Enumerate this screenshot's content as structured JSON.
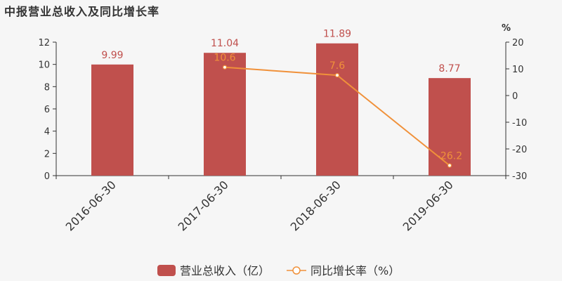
{
  "title": "中报营业总收入及同比增长率",
  "colors": {
    "bar": "#c0504d",
    "line": "#f0913a",
    "axis": "#333333",
    "background": "#f6f6f6"
  },
  "chart_data": {
    "type": "bar",
    "categories": [
      "2016-06-30",
      "2017-06-30",
      "2018-06-30",
      "2019-06-30"
    ],
    "series": [
      {
        "name": "营业总收入（亿）",
        "type": "bar",
        "axis": "left",
        "values": [
          9.99,
          11.04,
          11.89,
          8.77
        ],
        "labels": [
          "9.99",
          "11.04",
          "11.89",
          "8.77"
        ]
      },
      {
        "name": "同比增长率（%）",
        "type": "line",
        "axis": "right",
        "values": [
          null,
          10.6,
          7.6,
          -26.2
        ],
        "labels": [
          "",
          "10.6",
          "7.6",
          "-26.2"
        ]
      }
    ],
    "left_axis": {
      "ylim": [
        0,
        12
      ],
      "ticks": [
        "0",
        "2",
        "4",
        "6",
        "8",
        "10",
        "12"
      ]
    },
    "right_axis": {
      "unit": "%",
      "ylim": [
        -30,
        20
      ],
      "ticks": [
        "-30",
        "-20",
        "-10",
        "0",
        "10",
        "20"
      ]
    },
    "legend": {
      "placement": "bottom-center",
      "items": [
        "营业总收入（亿）",
        "同比增长率（%）"
      ]
    }
  }
}
